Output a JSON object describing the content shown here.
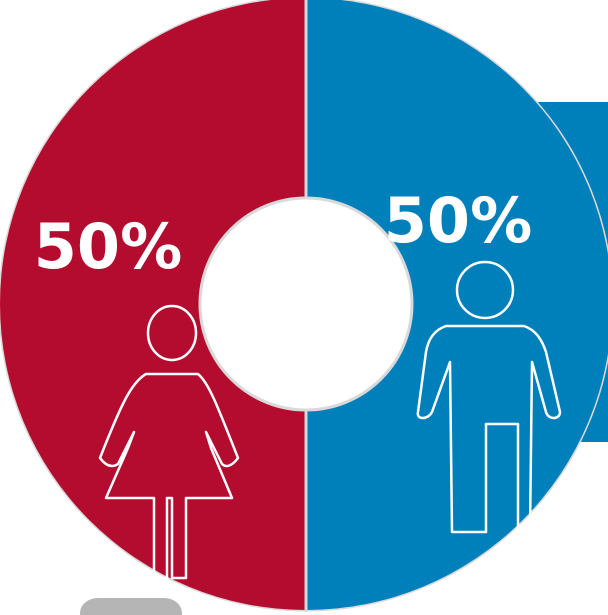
{
  "chart_data": {
    "type": "pie",
    "variant": "donut",
    "title": "",
    "categories": [
      "female",
      "male"
    ],
    "values": [
      50,
      50
    ],
    "labels": [
      "50%",
      "50%"
    ],
    "colors": [
      "#b30c2f",
      "#0080bb"
    ],
    "icons": [
      "female-figure-icon",
      "male-figure-icon"
    ]
  },
  "theme": {
    "ring_edge": "#d9d9d9",
    "blue_tab": "#0080bb",
    "grey_tab": "#b5b5b5",
    "icon_stroke": "#ffffff"
  }
}
